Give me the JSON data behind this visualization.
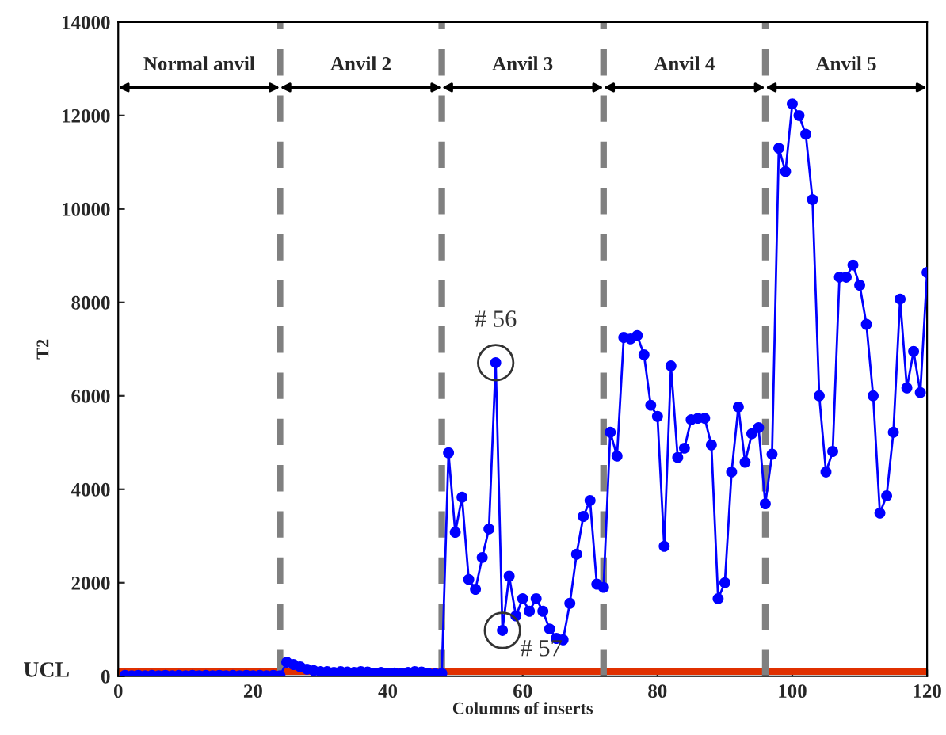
{
  "chart_data": {
    "type": "line",
    "xlabel": "Columns of inserts",
    "ylabel": "T2",
    "x": [
      1,
      2,
      3,
      4,
      5,
      6,
      7,
      8,
      9,
      10,
      11,
      12,
      13,
      14,
      15,
      16,
      17,
      18,
      19,
      20,
      21,
      22,
      23,
      24,
      25,
      26,
      27,
      28,
      29,
      30,
      31,
      32,
      33,
      34,
      35,
      36,
      37,
      38,
      39,
      40,
      41,
      42,
      43,
      44,
      45,
      46,
      47,
      48,
      49,
      50,
      51,
      52,
      53,
      54,
      55,
      56,
      57,
      58,
      59,
      60,
      61,
      62,
      63,
      64,
      65,
      66,
      67,
      68,
      69,
      70,
      71,
      72,
      73,
      74,
      75,
      76,
      77,
      78,
      79,
      80,
      81,
      82,
      83,
      84,
      85,
      86,
      87,
      88,
      89,
      90,
      91,
      92,
      93,
      94,
      95,
      96,
      97,
      98,
      99,
      100,
      101,
      102,
      103,
      104,
      105,
      106,
      107,
      108,
      109,
      110,
      111,
      112,
      113,
      114,
      115,
      116,
      117,
      118,
      119,
      120
    ],
    "series": [
      {
        "color": "#0000ff",
        "values": [
          20,
          10,
          20,
          10,
          20,
          10,
          20,
          10,
          20,
          10,
          20,
          10,
          20,
          10,
          20,
          10,
          20,
          10,
          20,
          10,
          20,
          10,
          20,
          10,
          300,
          250,
          200,
          150,
          120,
          100,
          100,
          80,
          100,
          90,
          80,
          100,
          90,
          60,
          80,
          60,
          70,
          60,
          80,
          100,
          90,
          60,
          50,
          60,
          4780,
          3080,
          3830,
          2070,
          1860,
          2540,
          3150,
          6710,
          980,
          2140,
          1290,
          1660,
          1390,
          1660,
          1390,
          1010,
          810,
          780,
          1560,
          2610,
          3420,
          3760,
          1970,
          1900,
          5220,
          4710,
          7250,
          7220,
          7290,
          6880,
          5800,
          5560,
          2780,
          6640,
          4680,
          4880,
          5490,
          5520,
          5520,
          4950,
          1660,
          2000,
          4370,
          5760,
          4580,
          5190,
          5320,
          3690,
          4750,
          11300,
          10800,
          12250,
          12000,
          11600,
          10200,
          6000,
          4370,
          4810,
          8540,
          8540,
          8800,
          8370,
          7530,
          6000,
          3490,
          3860,
          5220,
          8070,
          6170,
          6950,
          6070,
          8640
        ]
      }
    ],
    "marker": "circle",
    "line_style": "solid",
    "grid": false,
    "legend": false,
    "xlim": [
      0,
      120
    ],
    "ylim": [
      0,
      14000
    ],
    "xticks": [
      0,
      20,
      40,
      60,
      80,
      100,
      120
    ],
    "yticks": [
      0,
      2000,
      4000,
      6000,
      8000,
      10000,
      12000,
      14000
    ],
    "ref_lines": [
      {
        "axis": "y",
        "value": 100,
        "label": "UCL",
        "color": "#e03000",
        "line_style": "solid"
      },
      {
        "axis": "x",
        "value": 24,
        "color": "#808080",
        "line_style": "dashed"
      },
      {
        "axis": "x",
        "value": 48,
        "color": "#808080",
        "line_style": "dashed"
      },
      {
        "axis": "x",
        "value": 72,
        "color": "#808080",
        "line_style": "dashed"
      },
      {
        "axis": "x",
        "value": 96,
        "color": "#808080",
        "line_style": "dashed"
      }
    ],
    "annotations": [
      "Normal anvil",
      "Anvil 2",
      "Anvil 3",
      "Anvil 4",
      "Anvil 5",
      {
        "text": "# 56",
        "x": 56,
        "y": 6710
      },
      {
        "text": "# 57",
        "x": 57,
        "y": 980
      }
    ]
  }
}
